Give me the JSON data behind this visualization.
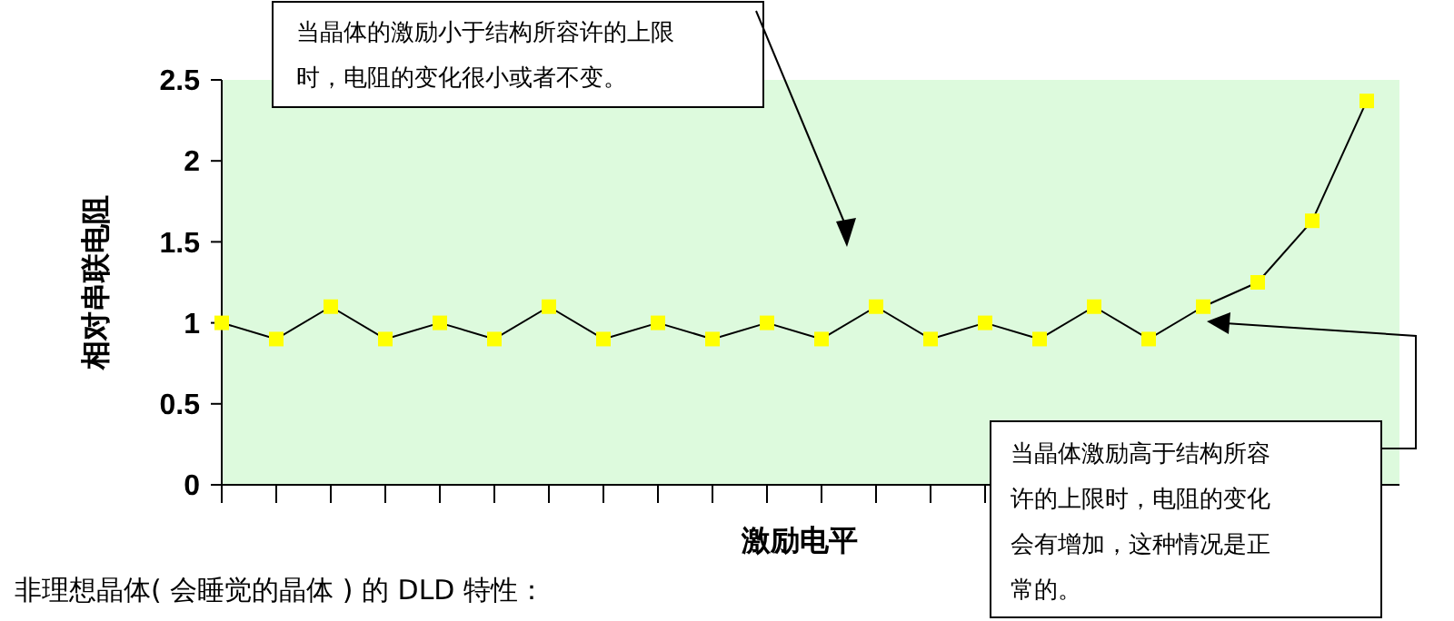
{
  "chart_data": {
    "type": "line",
    "xlabel": "激励电平",
    "ylabel": "相对串联电阻",
    "categories": [
      null,
      null,
      null,
      null,
      null,
      null,
      null,
      null,
      null,
      null,
      null,
      null,
      null,
      null,
      null,
      null,
      null,
      null,
      null,
      null,
      null,
      null
    ],
    "series": [
      {
        "color": "#ffff00",
        "values": [
          1,
          0.9,
          1.1,
          0.9,
          1,
          0.9,
          1.1,
          0.9,
          1,
          0.9,
          1,
          0.9,
          1.1,
          0.9,
          1,
          0.9,
          1.1,
          0.9,
          1.1,
          1.25,
          1.63,
          2.37
        ]
      }
    ],
    "ylim": [
      0,
      2.5
    ],
    "yticks": [
      0,
      0.5,
      1,
      1.5,
      2,
      2.5
    ],
    "marker": "square",
    "line_style": "solid",
    "grid": false,
    "annotations": [
      "当晶体的激励小于结构所容许的上限时，电阻的变化很小或者不变。",
      "当晶体激励高于结构所容许的上限时，电阻的变化会有增加，这种情况是正常的。",
      "非理想晶体( 会睡觉的晶体 ) 的 DLD 特性："
    ]
  }
}
